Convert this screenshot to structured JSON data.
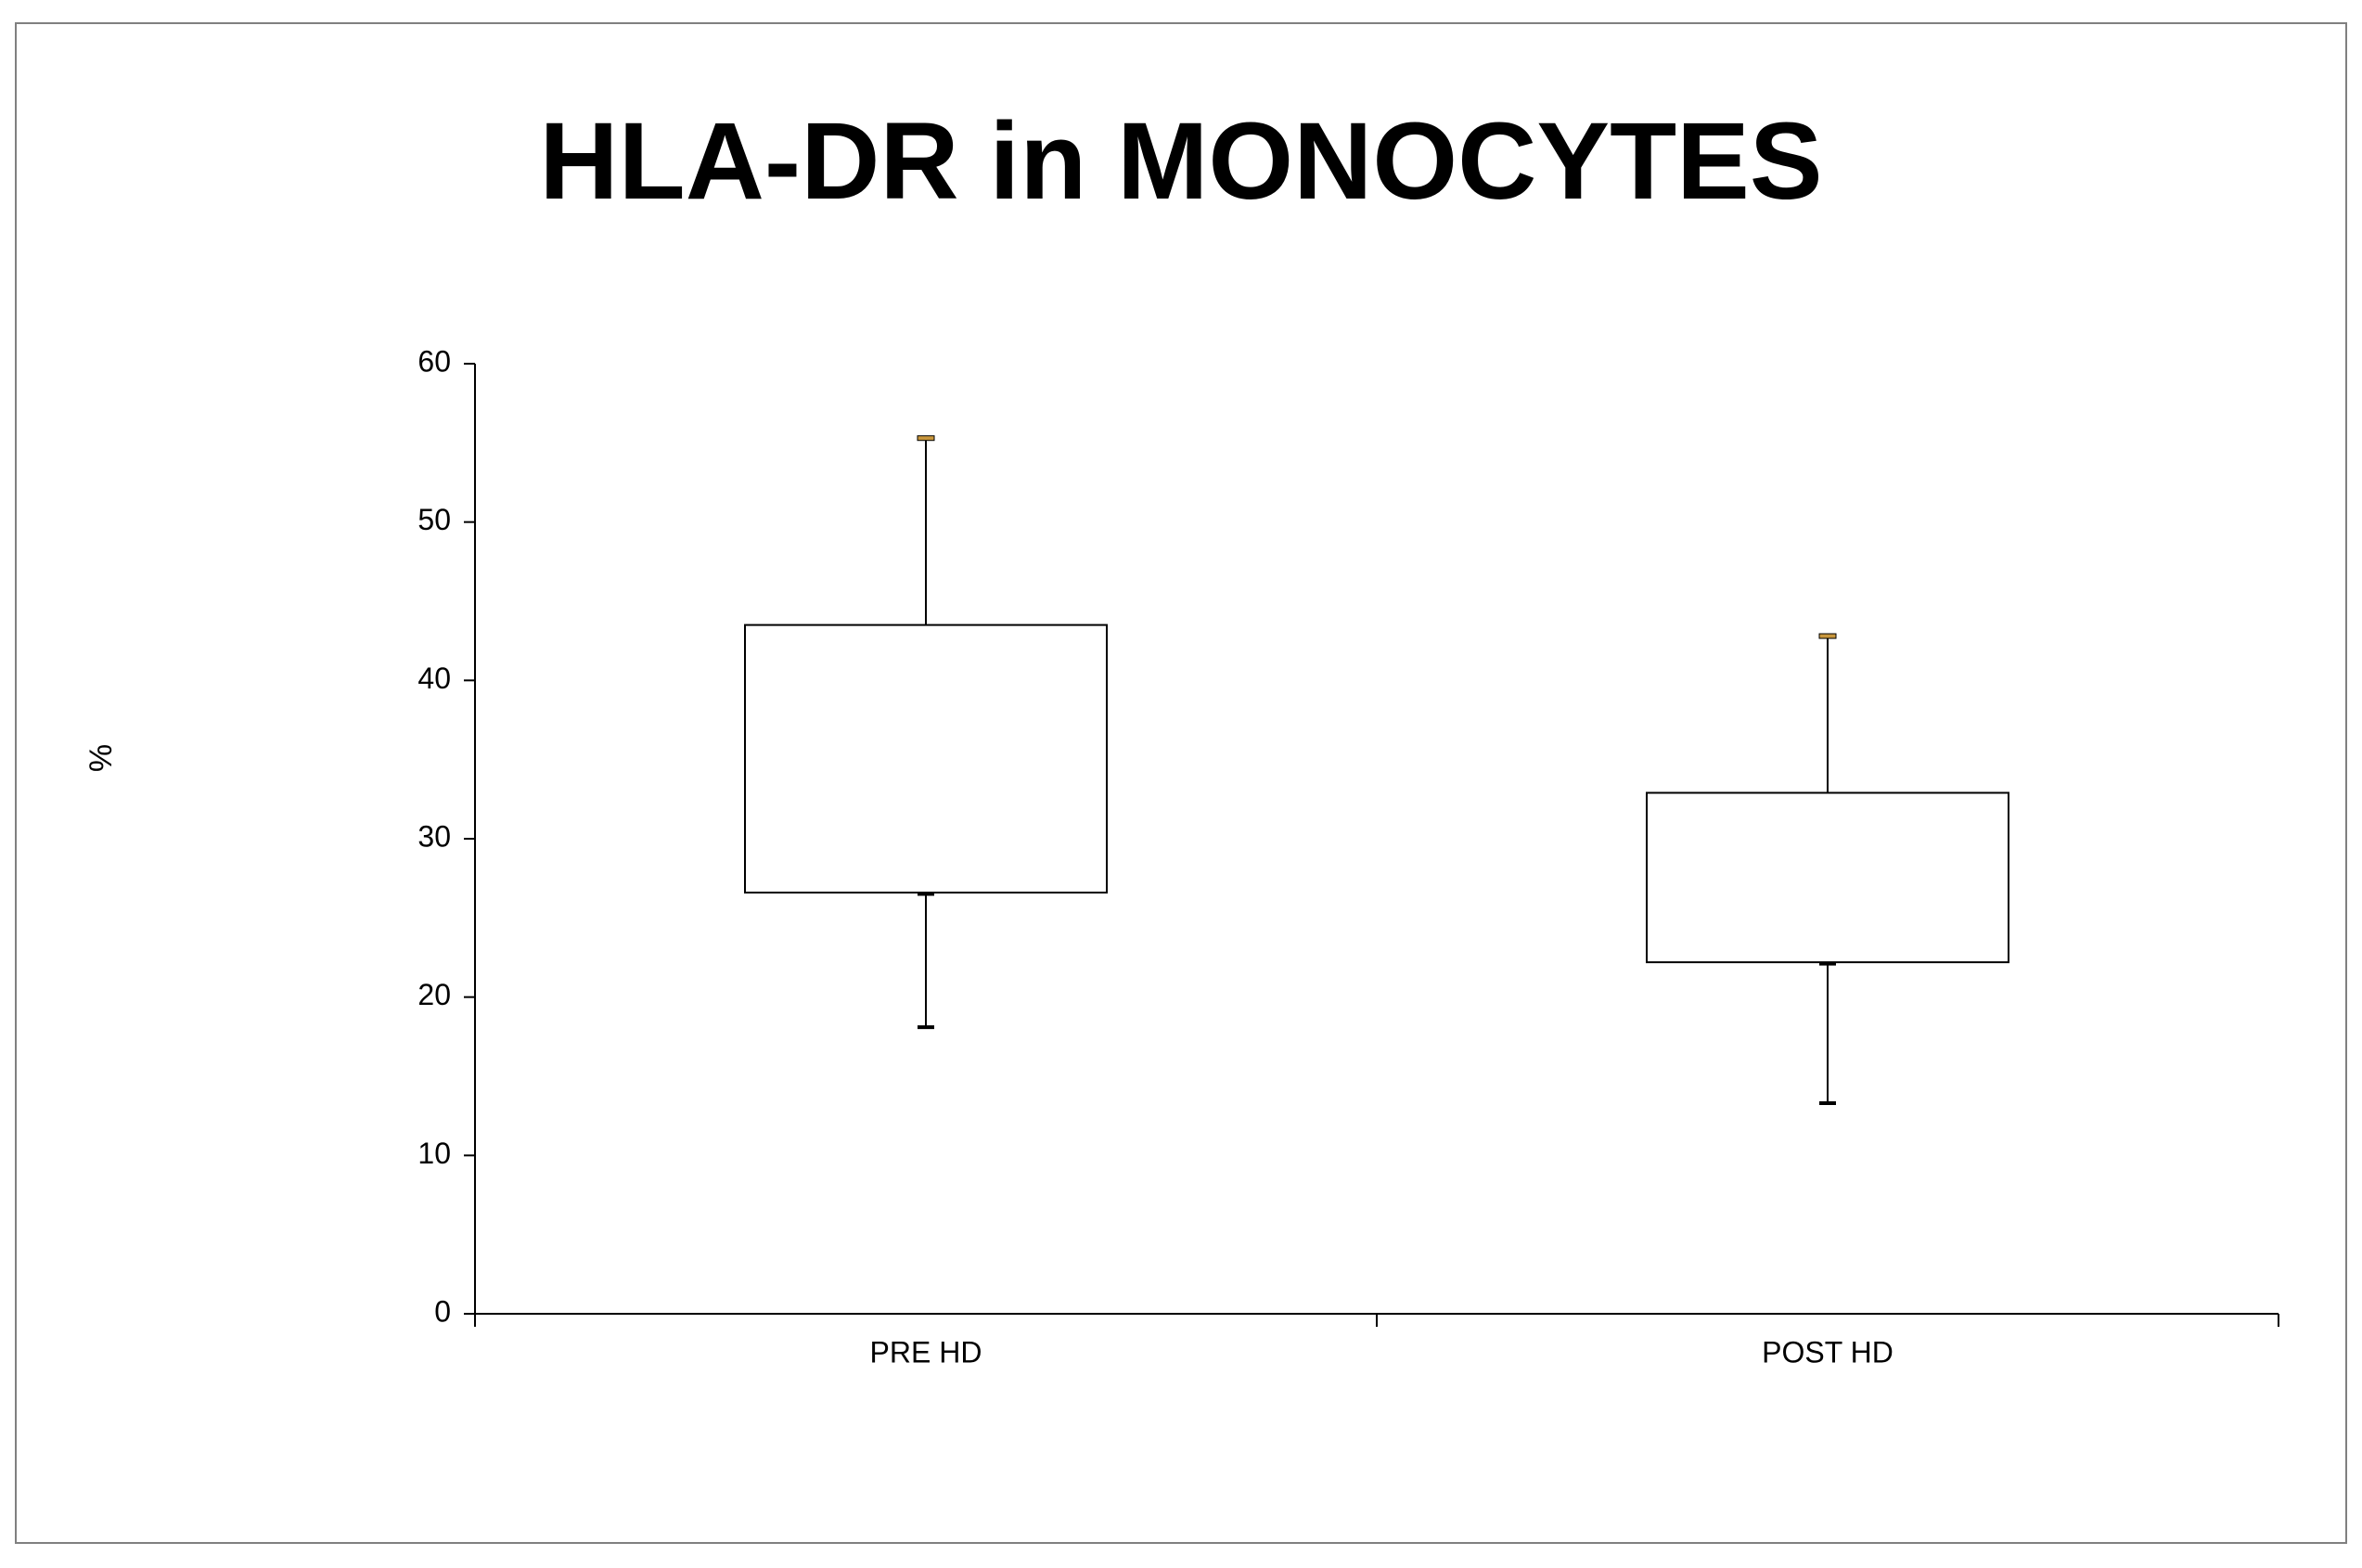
{
  "chart_data": {
    "type": "box",
    "title": "HLA-DR in MONOCYTES",
    "ylabel": "%",
    "xlabel": "",
    "ylim": [
      0,
      60
    ],
    "yticks": [
      0,
      10,
      20,
      30,
      40,
      50,
      60
    ],
    "categories": [
      "PRE HD",
      "POST HD"
    ],
    "boxes": [
      {
        "category": "PRE HD",
        "whisker_low": 18.1,
        "q1": 26.6,
        "q3": 43.5,
        "whisker_high": 55.3
      },
      {
        "category": "POST HD",
        "whisker_low": 13.3,
        "q1": 22.2,
        "q3": 32.9,
        "whisker_high": 42.8
      }
    ],
    "grid": false,
    "legend": "none"
  },
  "colors": {
    "axis": "#000000",
    "box_fill": "#ffffff",
    "box_stroke": "#000000",
    "upper_cap": "#c8963c",
    "lower_cap": "#000000",
    "frame": "#808080"
  }
}
